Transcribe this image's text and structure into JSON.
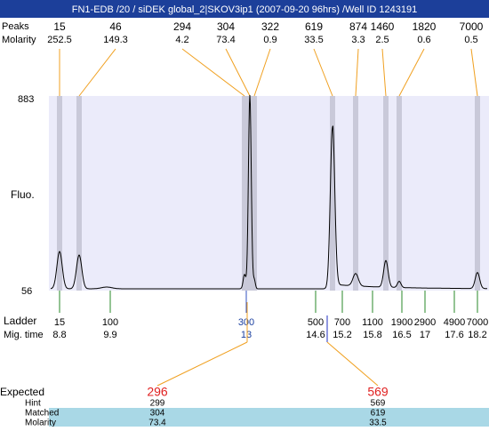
{
  "header": {
    "title": "FN1-EDB /20 / siDEK global_2|SKOV3ip1 (2007-09-20 96hrs) /Well ID 1243191"
  },
  "peaks": {
    "size_label": "Peaks",
    "molarity_label": "Molarity",
    "items": [
      {
        "size": "15",
        "molarity": "252.5"
      },
      {
        "size": "46",
        "molarity": "149.3"
      },
      {
        "size": "294",
        "molarity": "4.2"
      },
      {
        "size": "304",
        "molarity": "73.4"
      },
      {
        "size": "322",
        "molarity": "0.9"
      },
      {
        "size": "619",
        "molarity": "33.5"
      },
      {
        "size": "874",
        "molarity": "3.3"
      },
      {
        "size": "1460",
        "molarity": "2.5"
      },
      {
        "size": "1820",
        "molarity": "0.6"
      },
      {
        "size": "7000",
        "molarity": "0.5"
      }
    ]
  },
  "plot": {
    "y_max": "883",
    "y_min": "56",
    "y_label": "Fluo."
  },
  "ladder": {
    "label": "Ladder",
    "time_label": "Mig. time",
    "items": [
      {
        "size": "15",
        "time": "8.8"
      },
      {
        "size": "100",
        "time": "9.9"
      },
      {
        "size": "300",
        "time": "13"
      },
      {
        "size": "500",
        "time": "14.6"
      },
      {
        "size": "700",
        "time": "15.2"
      },
      {
        "size": "1100",
        "time": "15.8"
      },
      {
        "size": "1900",
        "time": "16.5"
      },
      {
        "size": "2900",
        "time": "17"
      },
      {
        "size": "4900",
        "time": "17.6"
      },
      {
        "size": "7000",
        "time": "18.2"
      }
    ]
  },
  "expected": {
    "labels": [
      "Expected",
      "Hint",
      "Matched",
      "Molarity"
    ],
    "columns": [
      [
        "296",
        "299",
        "304",
        "73.4"
      ],
      [
        "569",
        "569",
        "619",
        "33.5"
      ]
    ]
  }
}
